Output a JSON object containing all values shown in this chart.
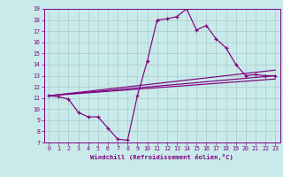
{
  "xlabel": "Windchill (Refroidissement éolien,°C)",
  "bg_color": "#c8eaea",
  "line_color": "#800080",
  "grid_color": "#b0d0d0",
  "xlim": [
    -0.5,
    23.5
  ],
  "ylim": [
    7,
    19
  ],
  "xticks": [
    0,
    1,
    2,
    3,
    4,
    5,
    6,
    7,
    8,
    9,
    10,
    11,
    12,
    13,
    14,
    15,
    16,
    17,
    18,
    19,
    20,
    21,
    22,
    23
  ],
  "yticks": [
    7,
    8,
    9,
    10,
    11,
    12,
    13,
    14,
    15,
    16,
    17,
    18,
    19
  ],
  "curve1_x": [
    0,
    1,
    2,
    3,
    4,
    5,
    6,
    7,
    8,
    9,
    10,
    11,
    12,
    13,
    14,
    15,
    16,
    17,
    18,
    19,
    20,
    21,
    22,
    23
  ],
  "curve1_y": [
    11.2,
    11.1,
    10.9,
    9.7,
    9.3,
    9.3,
    8.3,
    7.3,
    7.2,
    11.2,
    14.3,
    18.0,
    18.1,
    18.3,
    19.0,
    17.1,
    17.5,
    16.3,
    15.5,
    14.0,
    13.0,
    13.1,
    13.0,
    13.0
  ],
  "line1_x": [
    0,
    23
  ],
  "line1_y": [
    11.2,
    13.5
  ],
  "line2_x": [
    0,
    23
  ],
  "line2_y": [
    11.2,
    12.7
  ],
  "line3_x": [
    0,
    23
  ],
  "line3_y": [
    11.2,
    13.0
  ]
}
